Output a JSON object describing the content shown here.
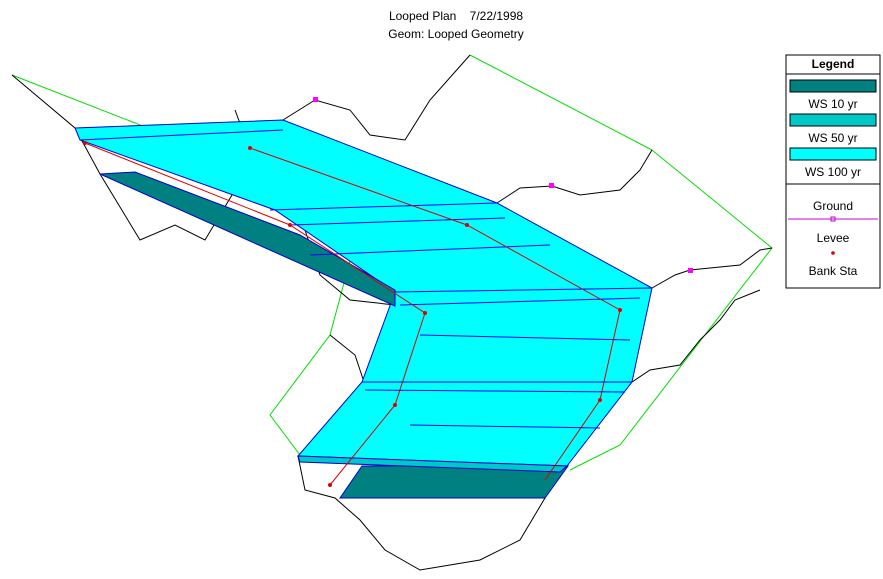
{
  "title": "Looped Plan    7/22/1998",
  "subtitle": "Geom: Looped Geometry",
  "legend": {
    "title": "Legend",
    "items": [
      "WS 10 yr",
      "WS 50 yr",
      "WS 100 yr",
      "Ground",
      "Levee",
      "Bank Sta"
    ]
  }
}
